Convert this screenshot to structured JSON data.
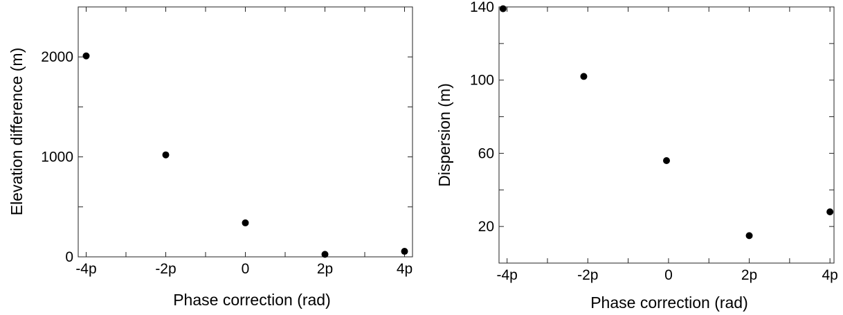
{
  "chart_data": [
    {
      "type": "scatter",
      "title": "",
      "xlabel": "Phase correction (rad)",
      "ylabel": "Elevation difference (m)",
      "xlim": [
        -4.2,
        4.2
      ],
      "ylim": [
        0,
        2500
      ],
      "x_ticks": [
        -4,
        -3,
        -2,
        -1,
        0,
        1,
        2,
        3,
        4
      ],
      "x_tick_labels": [
        {
          "value": -4,
          "label": "-4p"
        },
        {
          "value": -2,
          "label": "-2p"
        },
        {
          "value": 0,
          "label": "0"
        },
        {
          "value": 2,
          "label": "2p"
        },
        {
          "value": 4,
          "label": "4p"
        }
      ],
      "y_ticks": [
        0,
        500,
        1000,
        1500,
        2000
      ],
      "y_tick_labels": [
        {
          "value": 0,
          "label": "0"
        },
        {
          "value": 1000,
          "label": "1000"
        },
        {
          "value": 2000,
          "label": "2000"
        }
      ],
      "series": [
        {
          "x": [
            -4,
            -2,
            0,
            2,
            4
          ],
          "y": [
            2010,
            1020,
            340,
            25,
            55
          ]
        }
      ],
      "grid": false,
      "marker_color": "#000000"
    },
    {
      "type": "scatter",
      "title": "",
      "xlabel": "Phase correction (rad)",
      "ylabel": "Dispersion (m)",
      "xlim": [
        -4.2,
        4.1
      ],
      "ylim": [
        0,
        140
      ],
      "x_ticks": [
        -4,
        -3,
        -2,
        -1,
        0,
        1,
        2,
        3,
        4
      ],
      "x_tick_labels": [
        {
          "value": -4,
          "label": "-4p"
        },
        {
          "value": -2,
          "label": "-2p"
        },
        {
          "value": 0,
          "label": "0"
        },
        {
          "value": 2,
          "label": "2p"
        },
        {
          "value": 4,
          "label": "4p"
        }
      ],
      "y_ticks": [
        0,
        20,
        40,
        60,
        80,
        100,
        120,
        140
      ],
      "y_tick_labels": [
        {
          "value": 20,
          "label": "20"
        },
        {
          "value": 60,
          "label": "60"
        },
        {
          "value": 100,
          "label": "100"
        },
        {
          "value": 140,
          "label": "140"
        }
      ],
      "series": [
        {
          "x": [
            -4.1,
            -2.1,
            -0.05,
            2,
            4
          ],
          "y": [
            139,
            102,
            56,
            15,
            28
          ]
        }
      ],
      "grid": false,
      "marker_color": "#000000"
    }
  ]
}
